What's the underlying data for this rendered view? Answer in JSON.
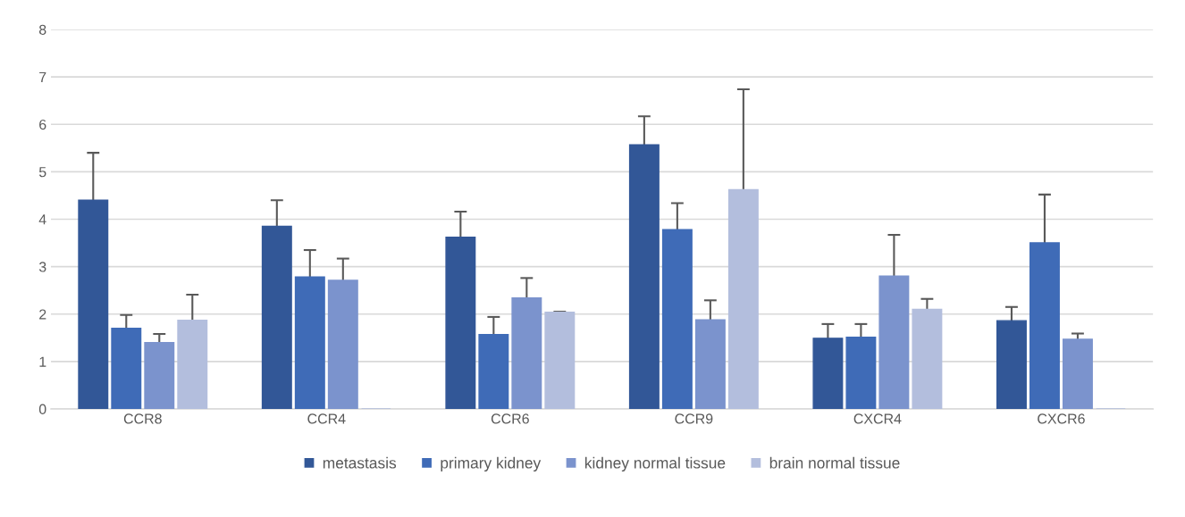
{
  "chart_data": {
    "type": "bar",
    "categories": [
      "CCR8",
      "CCR4",
      "CCR6",
      "CCR9",
      "CXCR4",
      "CXCR6"
    ],
    "series": [
      {
        "name": "metastasis",
        "color": "#325797",
        "values": [
          4.4,
          3.85,
          3.62,
          5.57,
          1.49,
          1.86
        ],
        "errors": [
          1.0,
          0.55,
          0.54,
          0.6,
          0.3,
          0.29
        ]
      },
      {
        "name": "primary kidney",
        "color": "#3f6bb7",
        "values": [
          1.7,
          2.78,
          1.57,
          3.78,
          1.51,
          3.5
        ],
        "errors": [
          0.28,
          0.57,
          0.37,
          0.56,
          0.28,
          1.02
        ]
      },
      {
        "name": "kidney normal tissue",
        "color": "#7b93cd",
        "values": [
          1.4,
          2.71,
          2.34,
          1.88,
          2.8,
          1.47
        ],
        "errors": [
          0.18,
          0.46,
          0.42,
          0.41,
          0.87,
          0.12
        ]
      },
      {
        "name": "brain normal tissue",
        "color": "#b3bedd",
        "values": [
          1.87,
          0,
          2.04,
          4.62,
          2.1,
          0
        ],
        "errors": [
          0.54,
          null,
          0.01,
          2.12,
          0.22,
          null
        ]
      }
    ],
    "ylim": [
      0,
      8
    ],
    "yticks": [
      0,
      1,
      2,
      3,
      4,
      5,
      6,
      7,
      8
    ],
    "grid": "y",
    "legend": "bottom"
  }
}
